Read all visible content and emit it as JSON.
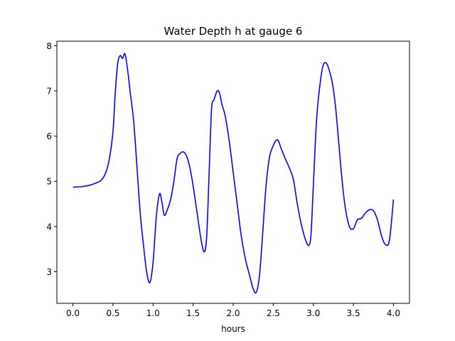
{
  "chart_data": {
    "type": "line",
    "title": "Water Depth h at gauge 6",
    "xlabel": "hours",
    "ylabel": "",
    "xlim": [
      -0.2,
      4.2
    ],
    "ylim": [
      2.3,
      8.1
    ],
    "xticks": [
      "0.0",
      "0.5",
      "1.0",
      "1.5",
      "2.0",
      "2.5",
      "3.0",
      "3.5",
      "4.0"
    ],
    "yticks": [
      "3",
      "4",
      "5",
      "6",
      "7",
      "8"
    ],
    "grid": false,
    "series": [
      {
        "name": "",
        "color": "#0000ff",
        "x": [
          0.0,
          0.1,
          0.2,
          0.3,
          0.35,
          0.4,
          0.45,
          0.5,
          0.53,
          0.56,
          0.59,
          0.62,
          0.65,
          0.68,
          0.72,
          0.76,
          0.8,
          0.84,
          0.88,
          0.92,
          0.96,
          1.0,
          1.04,
          1.08,
          1.11,
          1.14,
          1.18,
          1.22,
          1.26,
          1.3,
          1.34,
          1.38,
          1.42,
          1.46,
          1.5,
          1.55,
          1.6,
          1.64,
          1.67,
          1.7,
          1.73,
          1.76,
          1.8,
          1.83,
          1.86,
          1.9,
          1.95,
          2.0,
          2.05,
          2.1,
          2.15,
          2.2,
          2.25,
          2.29,
          2.33,
          2.37,
          2.41,
          2.45,
          2.49,
          2.55,
          2.6,
          2.65,
          2.7,
          2.75,
          2.8,
          2.85,
          2.9,
          2.94,
          2.97,
          3.0,
          3.04,
          3.08,
          3.12,
          3.16,
          3.2,
          3.24,
          3.28,
          3.32,
          3.36,
          3.4,
          3.45,
          3.5,
          3.55,
          3.6,
          3.65,
          3.7,
          3.75,
          3.8,
          3.85,
          3.9,
          3.95,
          4.0
        ],
        "y": [
          4.87,
          4.88,
          4.91,
          4.97,
          5.02,
          5.15,
          5.45,
          6.1,
          7.0,
          7.62,
          7.78,
          7.72,
          7.82,
          7.5,
          6.9,
          6.3,
          5.3,
          4.3,
          3.6,
          3.0,
          2.76,
          3.2,
          4.2,
          4.72,
          4.55,
          4.25,
          4.38,
          4.6,
          5.0,
          5.5,
          5.62,
          5.65,
          5.55,
          5.3,
          4.9,
          4.3,
          3.7,
          3.44,
          3.8,
          5.2,
          6.6,
          6.8,
          7.0,
          6.95,
          6.7,
          6.45,
          5.9,
          5.2,
          4.5,
          3.8,
          3.3,
          2.95,
          2.62,
          2.55,
          2.95,
          3.9,
          4.9,
          5.5,
          5.75,
          5.92,
          5.72,
          5.5,
          5.3,
          5.05,
          4.5,
          4.05,
          3.72,
          3.58,
          3.8,
          4.9,
          6.35,
          7.1,
          7.55,
          7.62,
          7.45,
          7.15,
          6.6,
          5.8,
          5.0,
          4.4,
          4.0,
          3.95,
          4.15,
          4.18,
          4.3,
          4.37,
          4.35,
          4.15,
          3.8,
          3.6,
          3.7,
          4.6
        ]
      }
    ]
  }
}
